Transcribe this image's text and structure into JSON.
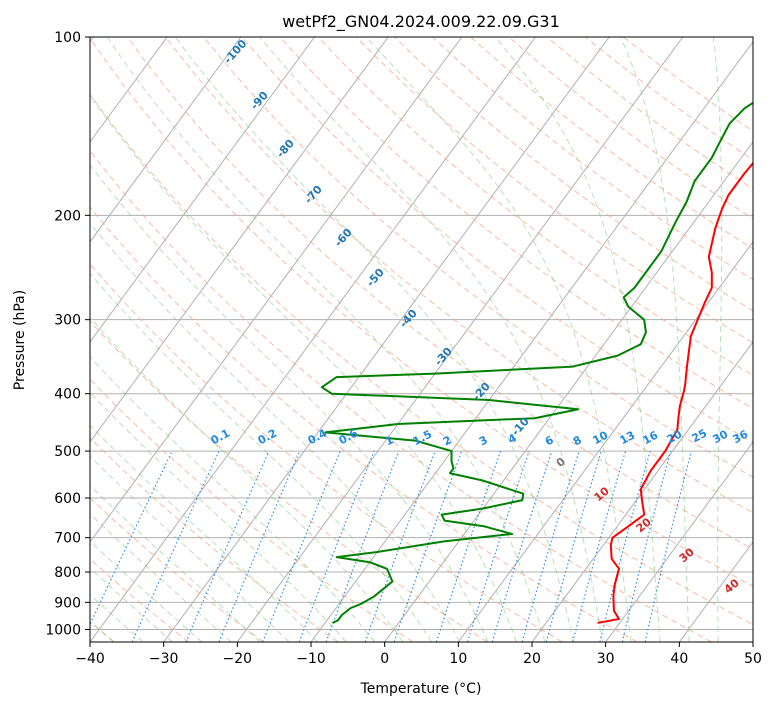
{
  "chart_data": {
    "type": "line",
    "title": "wetPf2_GN04.2024.009.22.09.G31",
    "xlabel": "Temperature (°C)",
    "ylabel": "Pressure (hPa)",
    "xlim": [
      -40,
      50
    ],
    "ylim": [
      1050,
      100
    ],
    "y_scale": "log",
    "grid": true,
    "x_ticks": [
      "−40",
      "−30",
      "−20",
      "−10",
      "0",
      "10",
      "20",
      "30",
      "40",
      "50"
    ],
    "x_tick_values": [
      -40,
      -30,
      -20,
      -10,
      0,
      10,
      20,
      30,
      40,
      50
    ],
    "y_ticks": [
      "100",
      "200",
      "300",
      "400",
      "500",
      "600",
      "700",
      "800",
      "900",
      "1000"
    ],
    "y_tick_values": [
      100,
      200,
      300,
      400,
      500,
      600,
      700,
      800,
      900,
      1000
    ],
    "series": [
      {
        "color": "#ff0000",
        "points": [
          [
            27,
            975
          ],
          [
            29.5,
            960
          ],
          [
            28,
            930
          ],
          [
            26.5,
            880
          ],
          [
            25.5,
            840
          ],
          [
            24.5,
            790
          ],
          [
            22.5,
            760
          ],
          [
            21,
            720
          ],
          [
            20.5,
            700
          ],
          [
            21.5,
            670
          ],
          [
            22.5,
            640
          ],
          [
            21,
            610
          ],
          [
            19.5,
            580
          ],
          [
            19,
            540
          ],
          [
            19,
            500
          ],
          [
            18.5,
            460
          ],
          [
            17.5,
            440
          ],
          [
            16.5,
            420
          ],
          [
            15.5,
            395
          ],
          [
            15,
            385
          ],
          [
            13.5,
            360
          ],
          [
            11,
            320
          ],
          [
            9.5,
            280
          ],
          [
            9,
            265
          ],
          [
            7.5,
            250
          ],
          [
            5.5,
            235
          ],
          [
            3.5,
            210
          ],
          [
            2.5,
            195
          ],
          [
            2,
            185
          ],
          [
            2,
            170
          ],
          [
            2.3,
            155
          ],
          [
            2,
            145
          ],
          [
            2,
            135
          ],
          [
            2.5,
            125
          ],
          [
            3,
            115
          ],
          [
            3.5,
            105
          ],
          [
            4.5,
            100
          ]
        ]
      },
      {
        "color": "#008000",
        "points": [
          [
            -9,
            975
          ],
          [
            -8.5,
            965
          ],
          [
            -8.5,
            945
          ],
          [
            -8,
            920
          ],
          [
            -7,
            905
          ],
          [
            -6,
            880
          ],
          [
            -5,
            830
          ],
          [
            -7,
            790
          ],
          [
            -10,
            770
          ],
          [
            -15,
            755
          ],
          [
            -10,
            740
          ],
          [
            -2,
            710
          ],
          [
            6.5,
            690
          ],
          [
            2,
            670
          ],
          [
            -4,
            655
          ],
          [
            -5,
            640
          ],
          [
            0,
            625
          ],
          [
            4.5,
            605
          ],
          [
            4,
            590
          ],
          [
            -3,
            560
          ],
          [
            -8,
            545
          ],
          [
            -8,
            535
          ],
          [
            -9,
            520
          ],
          [
            -10,
            500
          ],
          [
            -16,
            480
          ],
          [
            -29,
            465
          ],
          [
            -20,
            450
          ],
          [
            -2,
            440
          ],
          [
            3,
            425
          ],
          [
            -10,
            410
          ],
          [
            -32,
            400
          ],
          [
            -34,
            390
          ],
          [
            -33,
            375
          ],
          [
            -20,
            370
          ],
          [
            -2,
            360
          ],
          [
            3,
            345
          ],
          [
            5,
            330
          ],
          [
            4.5,
            315
          ],
          [
            3,
            300
          ],
          [
            -0.5,
            285
          ],
          [
            -2,
            275
          ],
          [
            -1.5,
            265
          ],
          [
            -1.5,
            250
          ],
          [
            -1.5,
            230
          ],
          [
            -2.5,
            205
          ],
          [
            -3,
            190
          ],
          [
            -4,
            175
          ],
          [
            -4,
            160
          ],
          [
            -4.5,
            150
          ],
          [
            -5,
            140
          ],
          [
            -4.5,
            132
          ],
          [
            -3,
            125
          ],
          [
            -1.5,
            115
          ],
          [
            0.5,
            105
          ],
          [
            1.5,
            100
          ]
        ]
      }
    ],
    "mixing_ratio_labels": [
      "0.1",
      "0.2",
      "0.4",
      "0.6",
      "1",
      "1.5",
      "2",
      "3",
      "4",
      "6",
      "8",
      "10",
      "13",
      "16",
      "20",
      "25",
      "30",
      "36"
    ],
    "dry_adiabat_labels": [
      "-100",
      "-90",
      "-80",
      "-70",
      "-60",
      "-50",
      "-40",
      "-30",
      "-20",
      "-10"
    ],
    "moist_adiabat_labels": [
      "0",
      "10",
      "20",
      "30",
      "40"
    ]
  }
}
